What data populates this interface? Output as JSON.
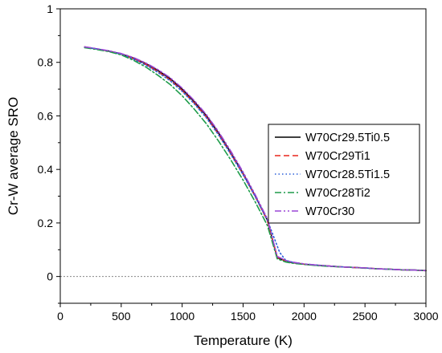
{
  "chart_data": {
    "type": "line",
    "xlabel": "Temperature (K)",
    "ylabel": "Cr-W average SRO",
    "xlim": [
      0,
      3000
    ],
    "ylim": [
      -0.1,
      1.0
    ],
    "xticks": [
      0,
      500,
      1000,
      1500,
      2000,
      2500,
      3000
    ],
    "xtick_labels": [
      "0",
      "500",
      "1000",
      "1500",
      "2000",
      "2500",
      "3000"
    ],
    "yticks": [
      0,
      0.2,
      0.4,
      0.6,
      0.8,
      1
    ],
    "ytick_labels": [
      "0",
      "0.2",
      "0.4",
      "0.6",
      "0.8",
      "1"
    ],
    "reference_line": {
      "y": 0,
      "style": "dotted",
      "color": "#888888"
    },
    "grid": false,
    "legend_position": "center-right",
    "series": [
      {
        "name": "W70Cr29.5Ti0.5",
        "color": "#000000",
        "dash": "solid",
        "x": [
          200,
          300,
          400,
          500,
          600,
          700,
          800,
          900,
          1000,
          1100,
          1200,
          1300,
          1400,
          1500,
          1600,
          1700,
          1780,
          1850,
          1900,
          2000,
          2100,
          2200,
          2300,
          2400,
          2500,
          2600,
          2700,
          2800,
          2900,
          3000
        ],
        "values": [
          0.857,
          0.85,
          0.842,
          0.832,
          0.816,
          0.796,
          0.77,
          0.74,
          0.7,
          0.653,
          0.6,
          0.535,
          0.462,
          0.385,
          0.3,
          0.21,
          0.07,
          0.058,
          0.052,
          0.046,
          0.042,
          0.039,
          0.036,
          0.034,
          0.032,
          0.029,
          0.027,
          0.025,
          0.024,
          0.022
        ]
      },
      {
        "name": "W70Cr29Ti1",
        "color": "#e8251c",
        "dash": "dashed",
        "x": [
          200,
          300,
          400,
          500,
          600,
          700,
          800,
          900,
          1000,
          1100,
          1200,
          1300,
          1400,
          1500,
          1600,
          1700,
          1780,
          1850,
          1900,
          2000,
          2100,
          2200,
          2300,
          2400,
          2500,
          2600,
          2700,
          2800,
          2900,
          3000
        ],
        "values": [
          0.858,
          0.85,
          0.842,
          0.831,
          0.814,
          0.793,
          0.766,
          0.735,
          0.695,
          0.648,
          0.595,
          0.53,
          0.458,
          0.382,
          0.298,
          0.208,
          0.072,
          0.059,
          0.053,
          0.046,
          0.042,
          0.039,
          0.036,
          0.034,
          0.032,
          0.029,
          0.027,
          0.025,
          0.024,
          0.022
        ]
      },
      {
        "name": "W70Cr28.5Ti1.5",
        "color": "#2b5fd9",
        "dash": "dotted",
        "x": [
          200,
          300,
          400,
          500,
          600,
          700,
          800,
          900,
          1000,
          1100,
          1200,
          1300,
          1400,
          1500,
          1600,
          1700,
          1800,
          1850,
          1900,
          2000,
          2100,
          2200,
          2300,
          2400,
          2500,
          2600,
          2700,
          2800,
          2900,
          3000
        ],
        "values": [
          0.857,
          0.85,
          0.842,
          0.83,
          0.812,
          0.79,
          0.763,
          0.732,
          0.692,
          0.645,
          0.592,
          0.528,
          0.456,
          0.38,
          0.298,
          0.21,
          0.09,
          0.06,
          0.054,
          0.047,
          0.043,
          0.039,
          0.036,
          0.034,
          0.032,
          0.029,
          0.027,
          0.025,
          0.024,
          0.022
        ]
      },
      {
        "name": "W70Cr28Ti2",
        "color": "#1e9c4a",
        "dash": "dashdot",
        "x": [
          200,
          300,
          400,
          500,
          600,
          700,
          800,
          900,
          1000,
          1100,
          1200,
          1300,
          1400,
          1500,
          1600,
          1700,
          1780,
          1850,
          1900,
          2000,
          2100,
          2200,
          2300,
          2400,
          2500,
          2600,
          2700,
          2800,
          2900,
          3000
        ],
        "values": [
          0.855,
          0.848,
          0.84,
          0.828,
          0.808,
          0.783,
          0.752,
          0.718,
          0.675,
          0.625,
          0.57,
          0.505,
          0.435,
          0.36,
          0.278,
          0.19,
          0.066,
          0.054,
          0.05,
          0.045,
          0.041,
          0.038,
          0.036,
          0.034,
          0.031,
          0.029,
          0.027,
          0.025,
          0.024,
          0.022
        ]
      },
      {
        "name": "W70Cr30",
        "color": "#9a47d6",
        "dash": "dashdotdot",
        "x": [
          200,
          300,
          400,
          500,
          600,
          700,
          800,
          900,
          1000,
          1100,
          1200,
          1300,
          1400,
          1500,
          1600,
          1700,
          1780,
          1850,
          1900,
          2000,
          2100,
          2200,
          2300,
          2400,
          2500,
          2600,
          2700,
          2800,
          2900,
          3000
        ],
        "values": [
          0.858,
          0.851,
          0.843,
          0.833,
          0.818,
          0.798,
          0.773,
          0.743,
          0.704,
          0.657,
          0.604,
          0.54,
          0.468,
          0.39,
          0.305,
          0.215,
          0.075,
          0.06,
          0.054,
          0.047,
          0.043,
          0.039,
          0.036,
          0.034,
          0.032,
          0.029,
          0.027,
          0.025,
          0.024,
          0.022
        ]
      }
    ]
  }
}
